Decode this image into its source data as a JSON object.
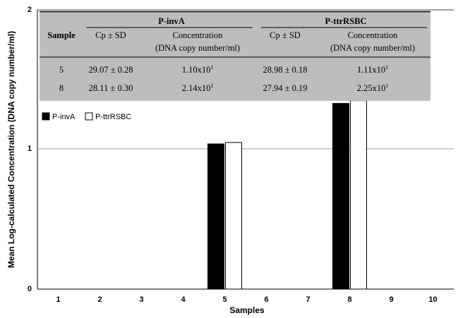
{
  "chart_data": {
    "type": "bar",
    "xlabel": "Samples",
    "ylabel": "Mean Log-calculated Concentration (DNA copy number/ml)",
    "categories": [
      "1",
      "2",
      "3",
      "4",
      "5",
      "6",
      "7",
      "8",
      "9",
      "10"
    ],
    "ylim": [
      0,
      2
    ],
    "yticks": [
      "0",
      "1",
      "2"
    ],
    "grid": "horizontal",
    "legend_position": "left",
    "series": [
      {
        "name": "P-invA",
        "color": "#000000",
        "values": [
          0,
          0,
          0,
          0,
          1.04,
          0,
          0,
          1.33,
          0,
          0
        ]
      },
      {
        "name": "P-ttrRSBC",
        "color": "#ffffff",
        "values": [
          0,
          0,
          0,
          0,
          1.05,
          0,
          0,
          1.35,
          0,
          0
        ]
      }
    ]
  },
  "table": {
    "background": "#bdbdbd",
    "sample_header": "Sample",
    "groups": [
      {
        "title": "P-invA",
        "cp_header": "Cp ± SD",
        "conc_header_line1": "Concentration",
        "conc_header_line2": "(DNA copy number/ml)"
      },
      {
        "title": "P-ttrRSBC",
        "cp_header": "Cp ± SD",
        "conc_header_line1": "Concentration",
        "conc_header_line2": "(DNA copy number/ml)"
      }
    ],
    "rows": [
      {
        "sample": "5",
        "cp1": "29.07 ± 0.28",
        "conc1_base": "1.10x10",
        "conc1_exp": "1",
        "cp2": "28.98 ± 0.18",
        "conc2_base": "1.11x10",
        "conc2_exp": "1"
      },
      {
        "sample": "8",
        "cp1": "28.11 ± 0.30",
        "conc1_base": "2.14x10",
        "conc1_exp": "1",
        "cp2": "27.94 ± 0.19",
        "conc2_base": "2.25x10",
        "conc2_exp": "1"
      }
    ]
  }
}
